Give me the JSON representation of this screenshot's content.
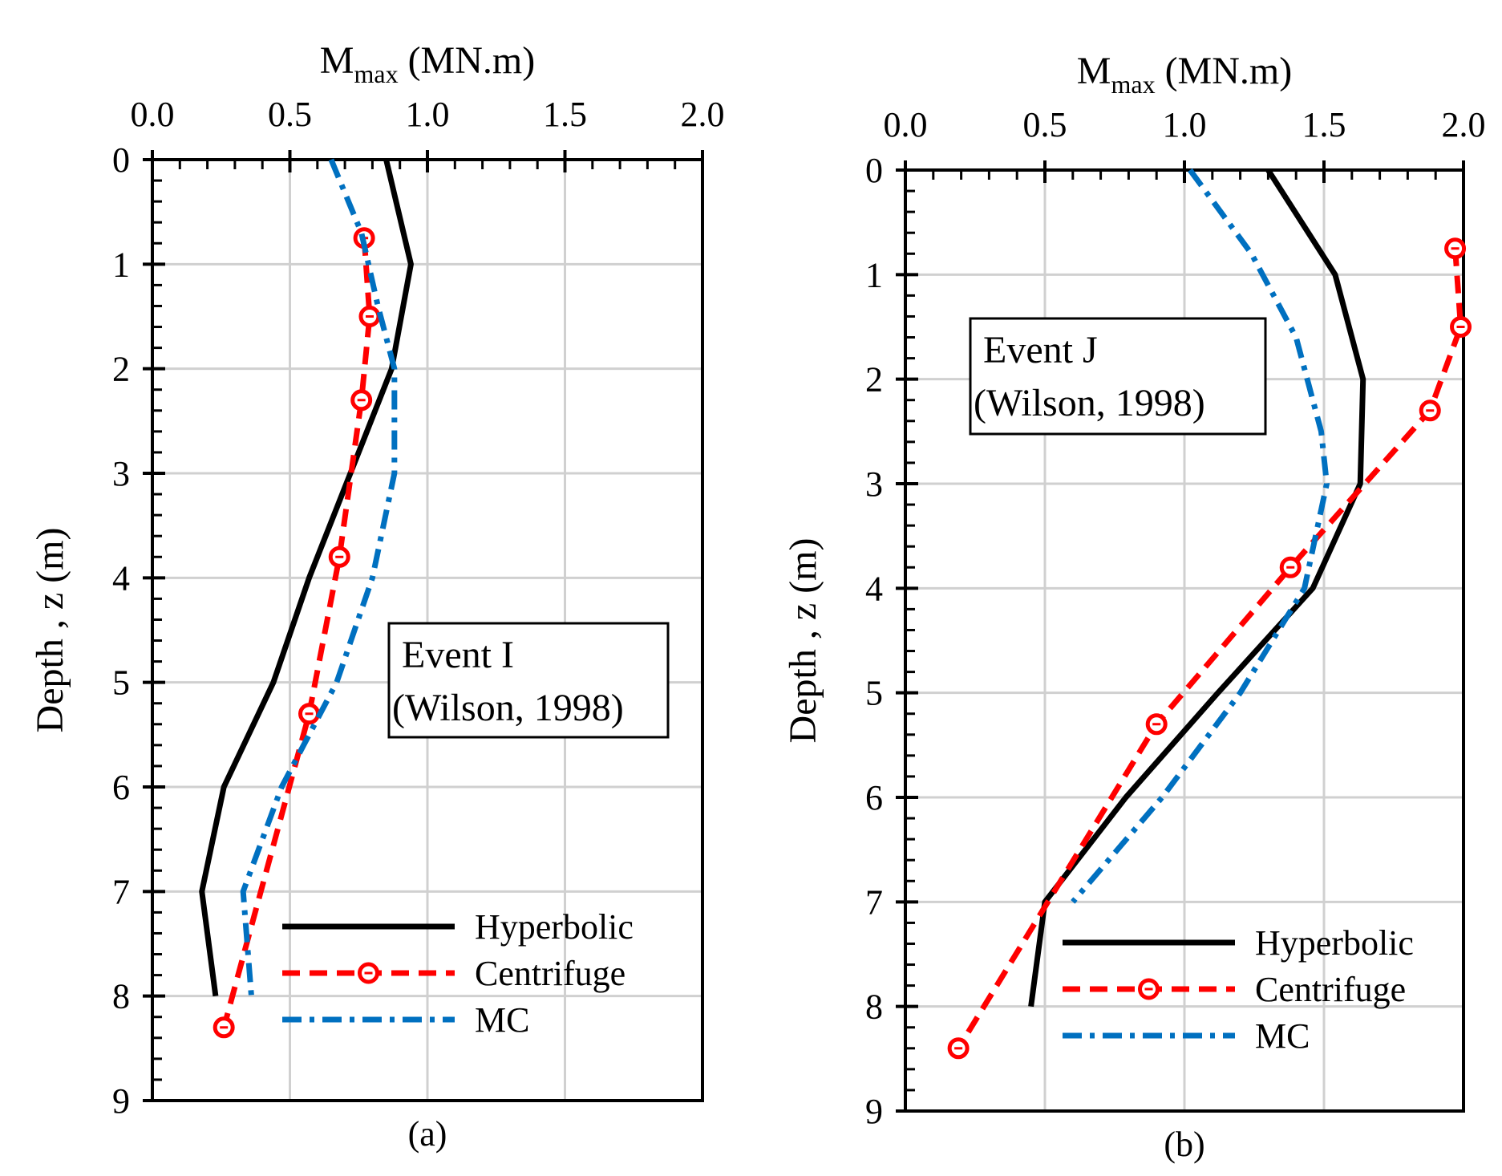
{
  "chart_data": [
    {
      "type": "line",
      "panel_label": "(a)",
      "xlabel_main": "M",
      "xlabel_sub": "max",
      "xlabel_unit": " (MN.m)",
      "ylabel": "Depth , z (m)",
      "xlim": [
        0,
        2
      ],
      "ylim": [
        0,
        9
      ],
      "x_axis_position": "top",
      "y_inverted": true,
      "grid": true,
      "xticks": [
        "0.0",
        "0.5",
        "1.0",
        "1.5",
        "2.0"
      ],
      "yticks": [
        "0",
        "1",
        "2",
        "3",
        "4",
        "5",
        "6",
        "7",
        "8",
        "9"
      ],
      "annotation": {
        "lines": [
          "Event I",
          "(Wilson, 1998)"
        ]
      },
      "legend": {
        "position": "bottom-right",
        "entries": [
          "Hyperbolic",
          "Centrifuge",
          "MC"
        ]
      },
      "series": [
        {
          "name": "Hyperbolic",
          "color": "#000000",
          "style": "solid",
          "points": [
            [
              0.85,
              0
            ],
            [
              0.94,
              1
            ],
            [
              0.87,
              2
            ],
            [
              0.69,
              3.2
            ],
            [
              0.57,
              4
            ],
            [
              0.44,
              5
            ],
            [
              0.26,
              6
            ],
            [
              0.18,
              7
            ],
            [
              0.23,
              8
            ]
          ]
        },
        {
          "name": "Centrifuge",
          "color": "#ff0000",
          "style": "dashed",
          "marker": "circle",
          "points": [
            [
              0.77,
              0.75
            ],
            [
              0.79,
              1.5
            ],
            [
              0.76,
              2.3
            ],
            [
              0.68,
              3.8
            ],
            [
              0.57,
              5.3
            ],
            [
              0.26,
              8.3
            ]
          ]
        },
        {
          "name": "MC",
          "color": "#0070c0",
          "style": "dashdot",
          "points": [
            [
              0.65,
              0
            ],
            [
              0.76,
              0.7
            ],
            [
              0.82,
              1.4
            ],
            [
              0.88,
              2
            ],
            [
              0.88,
              3
            ],
            [
              0.8,
              4
            ],
            [
              0.67,
              5
            ],
            [
              0.47,
              6
            ],
            [
              0.33,
              7
            ],
            [
              0.36,
              8
            ]
          ]
        }
      ]
    },
    {
      "type": "line",
      "panel_label": "(b)",
      "xlabel_main": "M",
      "xlabel_sub": "max",
      "xlabel_unit": " (MN.m)",
      "ylabel": "Depth , z (m)",
      "xlim": [
        0,
        2
      ],
      "ylim": [
        0,
        9
      ],
      "x_axis_position": "top",
      "y_inverted": true,
      "grid": true,
      "xticks": [
        "0.0",
        "0.5",
        "1.0",
        "1.5",
        "2.0"
      ],
      "yticks": [
        "0",
        "1",
        "2",
        "3",
        "4",
        "5",
        "6",
        "7",
        "8",
        "9"
      ],
      "annotation": {
        "lines": [
          "Event J",
          "(Wilson, 1998)"
        ]
      },
      "legend": {
        "position": "bottom-right",
        "entries": [
          "Hyperbolic",
          "Centrifuge",
          "MC"
        ]
      },
      "series": [
        {
          "name": "Hyperbolic",
          "color": "#000000",
          "style": "solid",
          "points": [
            [
              1.3,
              0
            ],
            [
              1.54,
              1
            ],
            [
              1.64,
              2
            ],
            [
              1.63,
              3
            ],
            [
              1.46,
              4
            ],
            [
              1.12,
              5
            ],
            [
              0.79,
              6
            ],
            [
              0.5,
              7
            ],
            [
              0.45,
              8
            ]
          ]
        },
        {
          "name": "Centrifuge",
          "color": "#ff0000",
          "style": "dashed",
          "marker": "circle",
          "points": [
            [
              1.97,
              0.75
            ],
            [
              1.99,
              1.5
            ],
            [
              1.88,
              2.3
            ],
            [
              1.38,
              3.8
            ],
            [
              0.9,
              5.3
            ],
            [
              0.19,
              8.4
            ]
          ]
        },
        {
          "name": "MC",
          "color": "#0070c0",
          "style": "dashdot",
          "points": [
            [
              1.02,
              0
            ],
            [
              1.24,
              0.8
            ],
            [
              1.4,
              1.6
            ],
            [
              1.49,
              2.5
            ],
            [
              1.51,
              3
            ],
            [
              1.43,
              4
            ],
            [
              1.2,
              5
            ],
            [
              0.92,
              6
            ],
            [
              0.6,
              7
            ]
          ]
        }
      ]
    }
  ]
}
